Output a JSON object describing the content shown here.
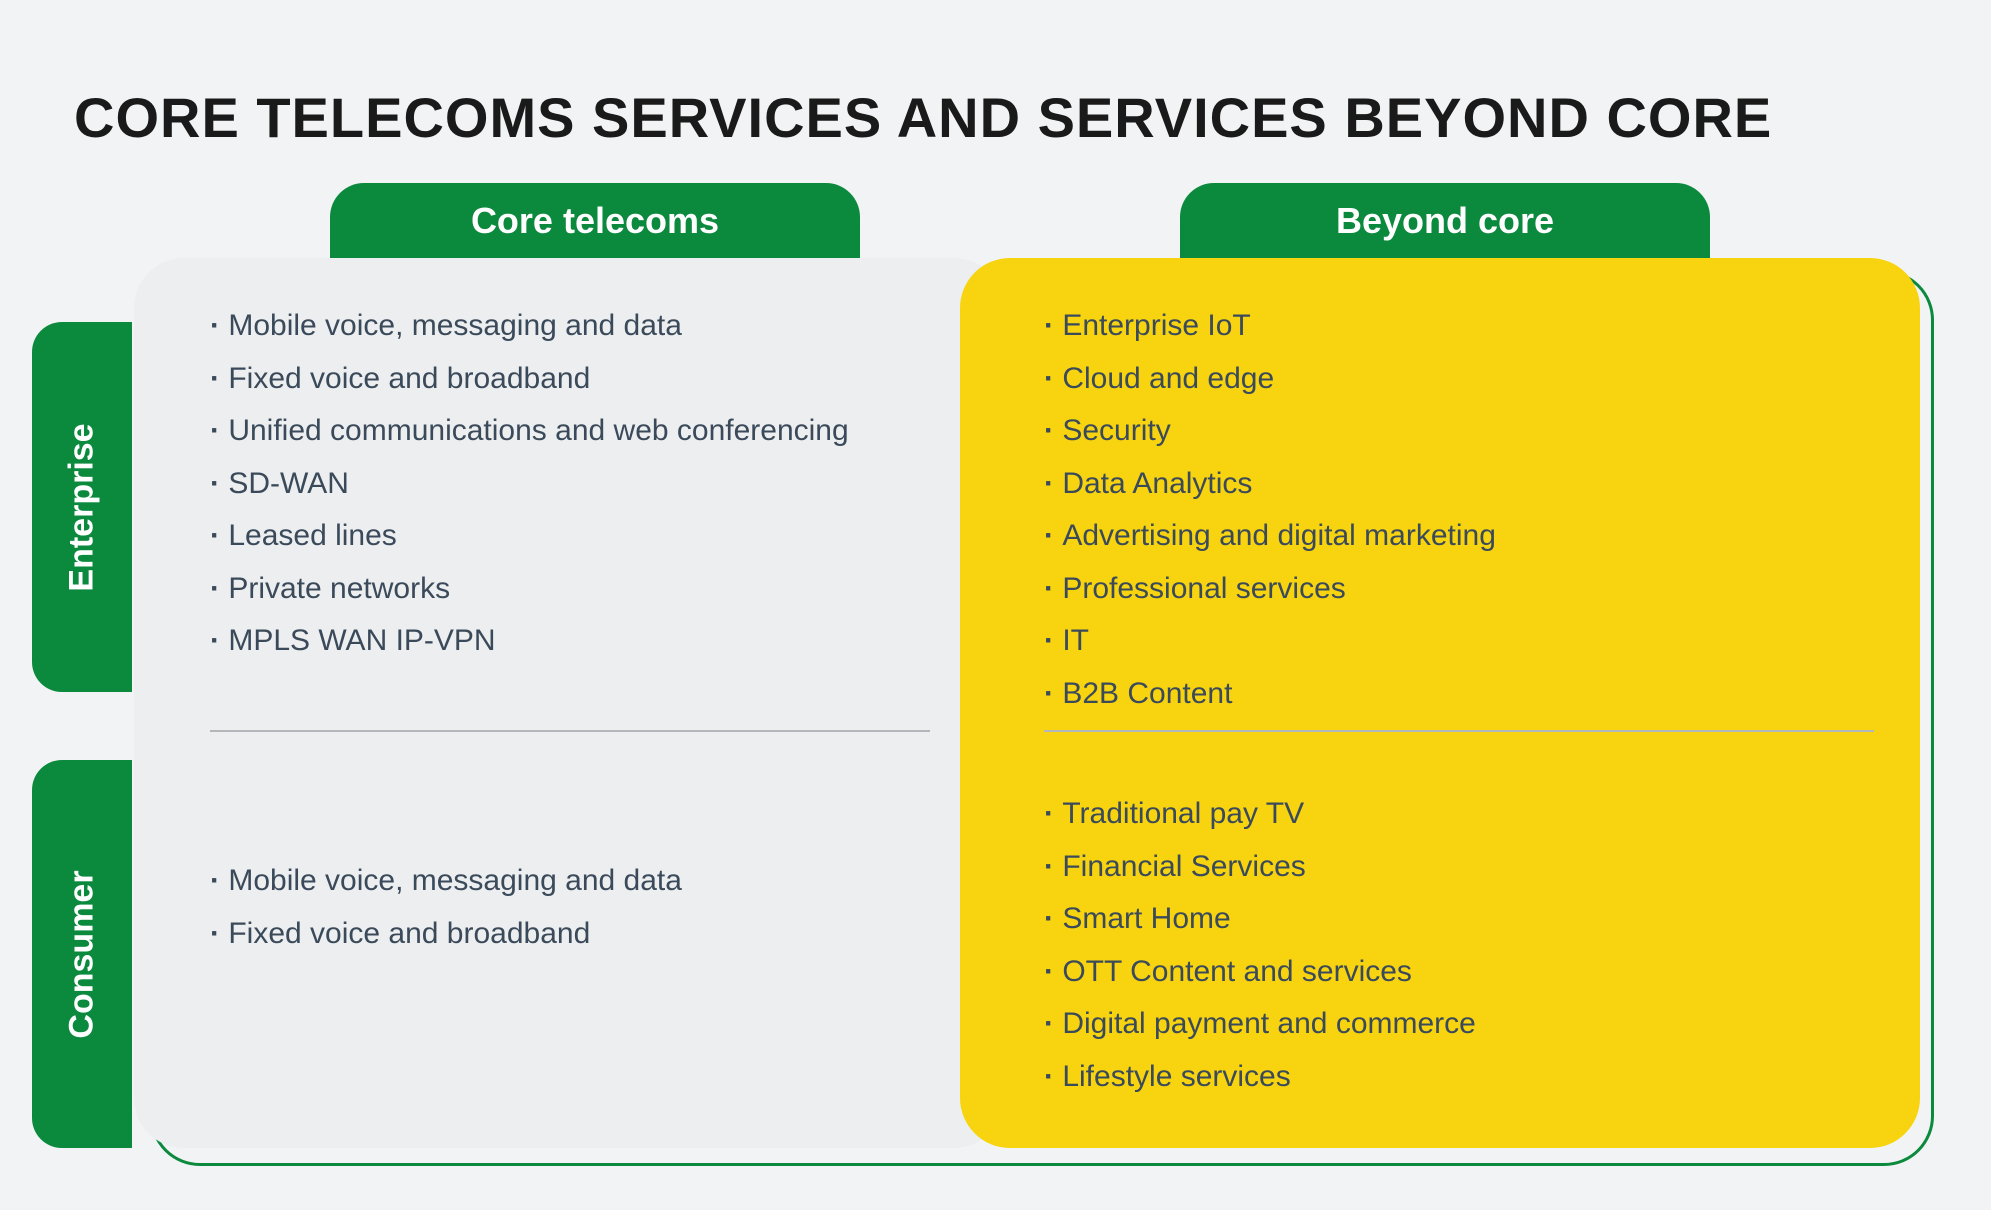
{
  "title": "CORE TELECOMS SERVICES AND SERVICES BEYOND CORE",
  "colors": {
    "green": "#0b8a3e",
    "yellow": "#f7d40f",
    "panel_grey": "#eceeef",
    "page_bg": "#f2f3f4",
    "text_dark": "#1a1a1a",
    "text_body": "#3b4a5a",
    "divider": "#b3b7bb"
  },
  "columns": {
    "left": {
      "label": "Core telecoms"
    },
    "right": {
      "label": "Beyond core"
    }
  },
  "rows": {
    "top": {
      "label": "Enterprise"
    },
    "bottom": {
      "label": "Consumer"
    }
  },
  "quadrants": {
    "enterprise_core": [
      "Mobile voice, messaging and data",
      "Fixed voice and broadband",
      "Unified communications and web conferencing",
      "SD-WAN",
      "Leased lines",
      "Private networks",
      "MPLS WAN IP-VPN"
    ],
    "enterprise_beyond": [
      "Enterprise IoT",
      "Cloud and edge",
      "Security",
      "Data Analytics",
      "Advertising and digital marketing",
      "Professional services",
      "IT",
      "B2B Content"
    ],
    "consumer_core": [
      "Mobile voice, messaging and data",
      "Fixed voice and broadband"
    ],
    "consumer_beyond": [
      "Traditional pay TV",
      "Financial Services",
      "Smart Home",
      "OTT Content and services",
      "Digital payment and commerce",
      "Lifestyle services"
    ]
  }
}
